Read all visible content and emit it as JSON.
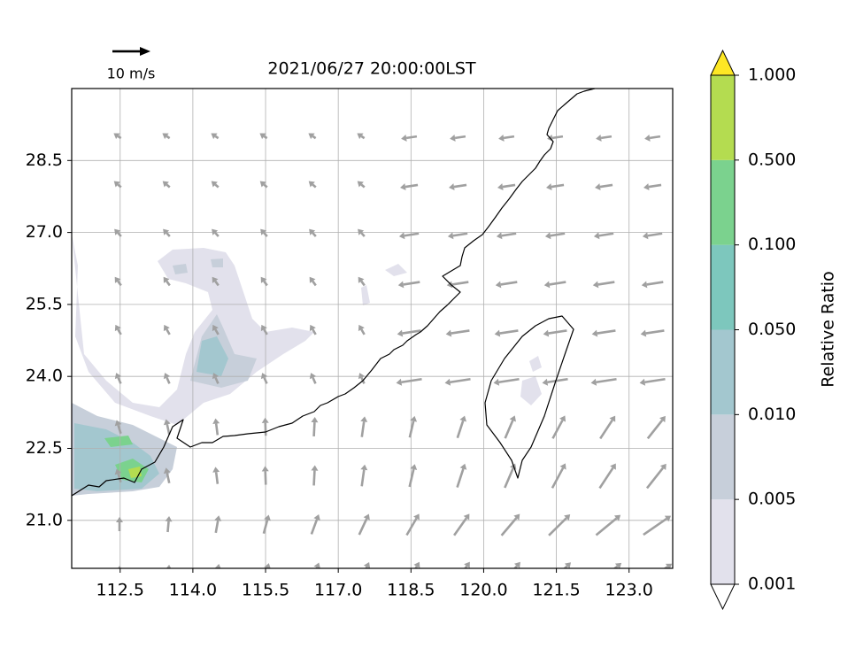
{
  "map": {
    "title": "2021/06/27 20:00:00LST",
    "reference_arrow_label": "10 m/s",
    "xlim": [
      111.5,
      123.9
    ],
    "ylim": [
      20.0,
      30.0
    ],
    "xticks": [
      112.5,
      {
        "value": 114,
        "label": "114.0"
      },
      115.5,
      {
        "value": 117,
        "label": "117.0"
      },
      118.5,
      {
        "value": 120,
        "label": "120.0"
      },
      121.5,
      {
        "value": 123,
        "label": "123.0"
      }
    ],
    "yticks": [
      28.5,
      {
        "value": 27,
        "label": "27.0"
      },
      25.5,
      {
        "value": 24,
        "label": "24.0"
      },
      22.5,
      {
        "value": 21,
        "label": "21.0"
      }
    ],
    "grid": true
  },
  "colorbar": {
    "label": "Relative Ratio",
    "levels": [
      {
        "value": 0.001,
        "label": "0.001"
      },
      {
        "value": 0.005,
        "label": "0.005"
      },
      {
        "value": 0.01,
        "label": "0.010"
      },
      {
        "value": 0.05,
        "label": "0.050"
      },
      {
        "value": 0.1,
        "label": "0.100"
      },
      {
        "value": 0.5,
        "label": "0.500"
      },
      {
        "value": 1,
        "label": "1.000"
      }
    ],
    "colors": [
      "#e2e1ec",
      "#c7cfda",
      "#a3c7cf",
      "#7dc7bd",
      "#7bd28e",
      "#b4dc50"
    ],
    "over_color": "#fde725",
    "under_color": "#ffffff"
  }
}
